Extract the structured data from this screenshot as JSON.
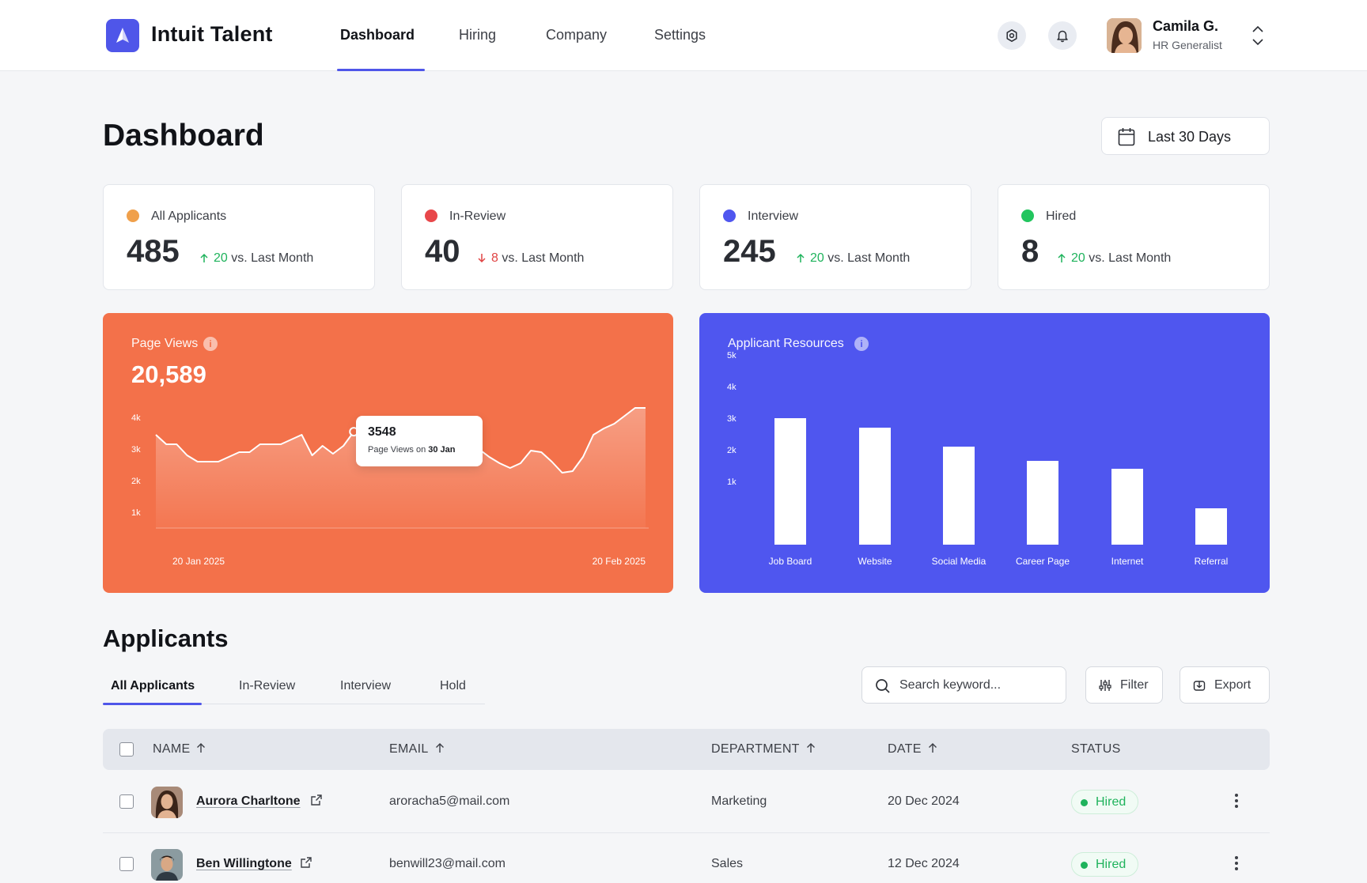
{
  "app": {
    "brand": "Intuit Talent"
  },
  "nav": {
    "dashboard": "Dashboard",
    "hiring": "Hiring",
    "company": "Company",
    "settings": "Settings"
  },
  "user": {
    "name": "Camila G.",
    "role": "HR Generalist"
  },
  "header": {
    "title": "Dashboard",
    "date_range": "Last 30 Days"
  },
  "stats": [
    {
      "label": "All Applicants",
      "value": "485",
      "trend_direction": "up",
      "trend_value": "20",
      "trend_suffix": "vs. Last Month",
      "color": "#f0a04b"
    },
    {
      "label": "In-Review",
      "value": "40",
      "trend_direction": "down",
      "trend_value": "8",
      "trend_suffix": "vs. Last Month",
      "color": "#e8474a"
    },
    {
      "label": "Interview",
      "value": "245",
      "trend_direction": "up",
      "trend_value": "20",
      "trend_suffix": "vs. Last Month",
      "color": "#4f56ef"
    },
    {
      "label": "Hired",
      "value": "8",
      "trend_direction": "up",
      "trend_value": "20",
      "trend_suffix": "vs. Last Month",
      "color": "#22c55e"
    }
  ],
  "page_views": {
    "title": "Page Views",
    "total": "20,589",
    "tooltip": {
      "value": "3548",
      "text": "Page Views on",
      "date": "30 Jan"
    }
  },
  "resources": {
    "title": "Applicant Resources"
  },
  "chart_data": [
    {
      "type": "area",
      "title": "Page Views",
      "x_start_label": "20 Jan 2025",
      "x_end_label": "20 Feb 2025",
      "yticks": [
        "1k",
        "2k",
        "3k",
        "4k"
      ],
      "ylim": [
        0,
        4200
      ],
      "values": [
        3450,
        3150,
        3150,
        2800,
        2600,
        2600,
        2600,
        2750,
        2900,
        2900,
        3150,
        3150,
        3150,
        3300,
        3450,
        2800,
        3100,
        2850,
        3100,
        3548,
        3900,
        3600,
        3400,
        3500,
        3400,
        3300,
        3350,
        3300,
        3200,
        3300,
        3000,
        3000,
        2750,
        2550,
        2400,
        2550,
        2950,
        2900,
        2600,
        2250,
        2300,
        2750,
        3450,
        3650,
        3800,
        4050,
        4300,
        4300
      ],
      "highlight_index": 19,
      "color": "#ffffff"
    },
    {
      "type": "bar",
      "title": "Applicant Resources",
      "categories": [
        "Job Board",
        "Website",
        "Social Media",
        "Career Page",
        "Internet",
        "Referral"
      ],
      "values": [
        4000,
        3700,
        3100,
        2650,
        2400,
        1150
      ],
      "yticks": [
        "1k",
        "2k",
        "3k",
        "4k",
        "5k"
      ],
      "ylim": [
        0,
        5000
      ],
      "color": "#ffffff"
    }
  ],
  "applicants": {
    "title": "Applicants",
    "tabs": [
      "All Applicants",
      "In-Review",
      "Interview",
      "Hold"
    ],
    "search_placeholder": "Search keyword...",
    "filter_label": "Filter",
    "export_label": "Export",
    "columns": {
      "name": "NAME",
      "email": "EMAIL",
      "department": "DEPARTMENT",
      "date": "DATE",
      "status": "STATUS"
    },
    "rows": [
      {
        "name": "Aurora Charltone",
        "email": "aroracha5@mail.com",
        "department": "Marketing",
        "date": "20 Dec 2024",
        "status": "Hired"
      },
      {
        "name": "Ben Willingtone",
        "email": "benwill23@mail.com",
        "department": "Sales",
        "date": "12 Dec 2024",
        "status": "Hired"
      }
    ]
  }
}
